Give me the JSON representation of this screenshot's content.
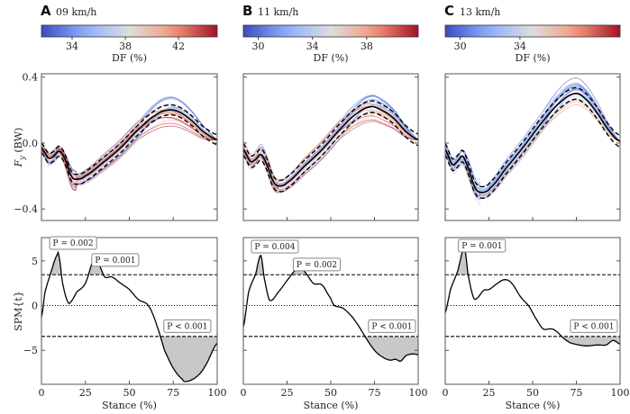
{
  "colormap": [
    "#3b4cc0",
    "#8db0fe",
    "#dddddd",
    "#f49a7b",
    "#a50f26"
  ],
  "axis_labels": {
    "fy": "F_y (BW)",
    "fy_sub": "y",
    "fy_main": "F",
    "fy_unit": " (BW)",
    "spm": "SPM{t}",
    "x": "Stance (%)",
    "cbar": "DF (%)"
  },
  "chart_data": [
    {
      "type": "line",
      "panel": "A",
      "title": "09 km/h",
      "colorbar": {
        "label": "DF (%)",
        "range": [
          31.7,
          44.9
        ],
        "ticks": [
          34,
          38,
          42
        ]
      },
      "fy": {
        "ylim": [
          -0.47,
          0.42
        ],
        "yticks": [
          -0.4,
          0.0,
          0.4
        ],
        "ytick_labels": [
          "−0.4",
          "0.0",
          "0.4"
        ],
        "show_ytick_labels": true,
        "mean": [
          [
            0,
            -0.03
          ],
          [
            4,
            -0.09
          ],
          [
            7,
            -0.08
          ],
          [
            10,
            -0.05
          ],
          [
            13,
            -0.09
          ],
          [
            17,
            -0.2
          ],
          [
            20,
            -0.22
          ],
          [
            25,
            -0.2
          ],
          [
            35,
            -0.12
          ],
          [
            45,
            -0.03
          ],
          [
            55,
            0.08
          ],
          [
            65,
            0.17
          ],
          [
            72,
            0.2
          ],
          [
            78,
            0.19
          ],
          [
            85,
            0.14
          ],
          [
            92,
            0.07
          ],
          [
            100,
            0.02
          ]
        ],
        "sd": 0.03
      },
      "spm": {
        "ylim": [
          -8.8,
          7.6
        ],
        "yticks": [
          -5,
          0,
          5
        ],
        "ytick_labels": [
          "−5",
          "0",
          "5"
        ],
        "threshold": 3.45,
        "show_ytick_labels": true,
        "x": [
          0,
          2,
          5,
          9,
          10,
          12,
          15,
          17,
          20,
          25,
          30,
          33,
          36,
          40,
          45,
          50,
          55,
          60,
          63,
          67,
          70,
          75,
          80,
          82,
          88,
          93,
          100
        ],
        "y": [
          -1.3,
          1.5,
          3.5,
          5.7,
          5.5,
          2.5,
          0.4,
          0.5,
          1.5,
          2.5,
          5.2,
          4.5,
          3.2,
          3.2,
          2.5,
          1.8,
          0.7,
          0.2,
          -0.8,
          -3,
          -5,
          -7,
          -8.2,
          -8.5,
          -8,
          -6.8,
          -4.2
        ],
        "annotations": [
          {
            "text": "P = 0.002",
            "at": [
              18,
              7.0
            ]
          },
          {
            "text": "P = 0.001",
            "at": [
              42,
              5.1
            ]
          },
          {
            "text": "P < 0.001",
            "at": [
              83,
              -2.3
            ]
          }
        ]
      },
      "xticks": [
        0,
        25,
        50,
        75,
        100
      ]
    },
    {
      "type": "line",
      "panel": "B",
      "title": "11 km/h",
      "colorbar": {
        "label": "DF (%)",
        "range": [
          28.9,
          41.8
        ],
        "ticks": [
          30,
          34,
          38
        ]
      },
      "fy": {
        "ylim": [
          -0.47,
          0.42
        ],
        "yticks": [
          -0.4,
          0.0,
          0.4
        ],
        "ytick_labels": [
          "",
          "",
          ""
        ],
        "show_ytick_labels": false,
        "mean": [
          [
            0,
            -0.04
          ],
          [
            4,
            -0.11
          ],
          [
            7,
            -0.1
          ],
          [
            10,
            -0.07
          ],
          [
            13,
            -0.12
          ],
          [
            17,
            -0.23
          ],
          [
            20,
            -0.26
          ],
          [
            25,
            -0.24
          ],
          [
            35,
            -0.14
          ],
          [
            45,
            -0.04
          ],
          [
            55,
            0.08
          ],
          [
            65,
            0.18
          ],
          [
            73,
            0.22
          ],
          [
            79,
            0.2
          ],
          [
            86,
            0.15
          ],
          [
            93,
            0.07
          ],
          [
            100,
            0.02
          ]
        ],
        "sd": 0.035
      },
      "spm": {
        "ylim": [
          -8.8,
          7.6
        ],
        "yticks": [
          -5,
          0,
          5
        ],
        "ytick_labels": [
          "",
          "",
          ""
        ],
        "threshold": 3.45,
        "show_ytick_labels": false,
        "x": [
          0,
          3,
          7,
          10,
          12,
          15,
          20,
          25,
          30,
          32,
          35,
          40,
          45,
          50,
          52,
          57,
          62,
          66,
          70,
          75,
          80,
          84,
          87,
          90,
          93,
          97,
          100
        ],
        "y": [
          -2.4,
          1.5,
          3.5,
          5.6,
          3.0,
          0.6,
          1.5,
          2.8,
          4.0,
          4.3,
          3.8,
          2.5,
          2.3,
          0.8,
          0,
          -0.3,
          -1.2,
          -2.3,
          -3.6,
          -5,
          -5.8,
          -6.1,
          -6.0,
          -6.2,
          -5.6,
          -5.4,
          -5.5
        ],
        "annotations": [
          {
            "text": "P = 0.004",
            "at": [
              18,
              6.6
            ]
          },
          {
            "text": "P = 0.002",
            "at": [
              42,
              4.6
            ]
          },
          {
            "text": "P < 0.001",
            "at": [
              85,
              -2.3
            ]
          }
        ]
      },
      "xticks": [
        0,
        25,
        50,
        75,
        100
      ]
    },
    {
      "type": "line",
      "panel": "C",
      "title": "13 km/h",
      "colorbar": {
        "label": "DF (%)",
        "range": [
          29.0,
          40.7
        ],
        "ticks": [
          30,
          34
        ]
      },
      "fy": {
        "ylim": [
          -0.47,
          0.42
        ],
        "yticks": [
          -0.4,
          0.0,
          0.4
        ],
        "ytick_labels": [
          "",
          "",
          ""
        ],
        "show_ytick_labels": false,
        "mean": [
          [
            0,
            -0.04
          ],
          [
            4,
            -0.13
          ],
          [
            7,
            -0.11
          ],
          [
            10,
            -0.08
          ],
          [
            13,
            -0.15
          ],
          [
            17,
            -0.27
          ],
          [
            21,
            -0.3
          ],
          [
            26,
            -0.27
          ],
          [
            35,
            -0.15
          ],
          [
            45,
            -0.02
          ],
          [
            55,
            0.12
          ],
          [
            65,
            0.24
          ],
          [
            74,
            0.3
          ],
          [
            80,
            0.27
          ],
          [
            87,
            0.18
          ],
          [
            94,
            0.07
          ],
          [
            100,
            0.01
          ]
        ],
        "sd": 0.035
      },
      "spm": {
        "ylim": [
          -8.8,
          7.6
        ],
        "yticks": [
          -5,
          0,
          5
        ],
        "ytick_labels": [
          "",
          "",
          ""
        ],
        "threshold": 3.45,
        "show_ytick_labels": false,
        "x": [
          0,
          3,
          7,
          11,
          13,
          16,
          18,
          22,
          25,
          30,
          34,
          38,
          43,
          48,
          52,
          56,
          60,
          63,
          68,
          72,
          80,
          87,
          92,
          96,
          100
        ],
        "y": [
          -0.8,
          1.8,
          3.8,
          6.4,
          3.5,
          1.0,
          0.8,
          1.7,
          1.8,
          2.5,
          2.9,
          2.5,
          1.0,
          -0.1,
          -1.5,
          -2.6,
          -2.6,
          -2.8,
          -3.7,
          -4.2,
          -4.5,
          -4.4,
          -4.4,
          -3.9,
          -4.3
        ],
        "annotations": [
          {
            "text": "P = 0.001",
            "at": [
              21,
              6.7
            ]
          },
          {
            "text": "P < 0.001",
            "at": [
              85,
              -2.3
            ]
          }
        ]
      },
      "xticks": [
        0,
        25,
        50,
        75,
        100
      ]
    }
  ]
}
